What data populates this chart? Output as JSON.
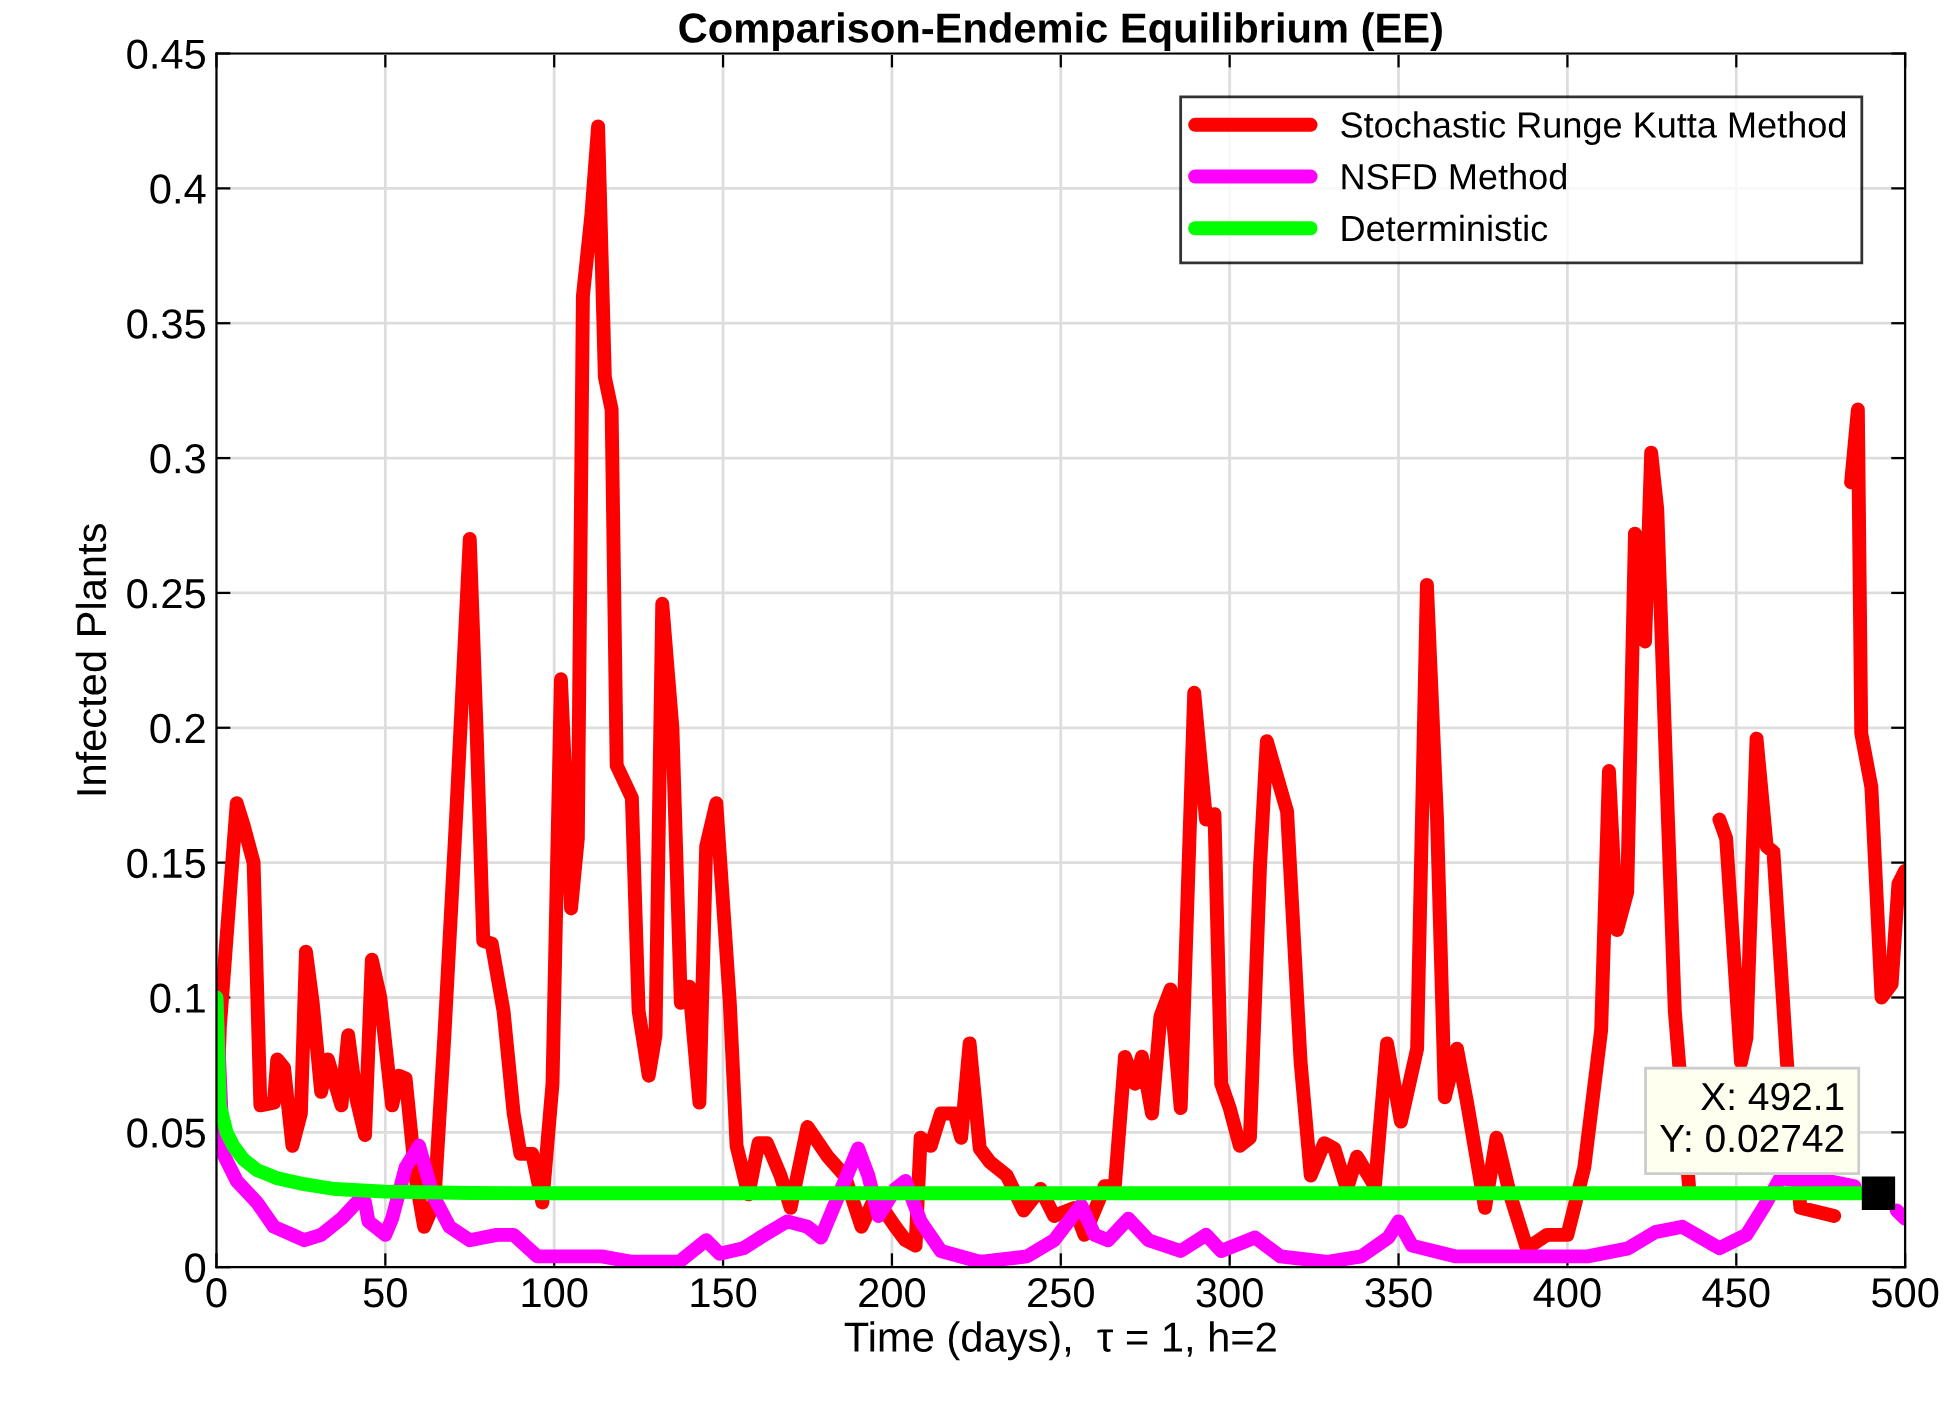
{
  "chart_data": {
    "type": "line",
    "title": "Comparison-Endemic Equilibrium (EE)",
    "xlabel": "Time (days),  τ = 1, h=2",
    "ylabel": "Infected Plants",
    "xlim": [
      0,
      500
    ],
    "xticks": [
      0,
      50,
      100,
      150,
      200,
      250,
      300,
      350,
      400,
      450,
      500
    ],
    "ylim": [
      0,
      0.45
    ],
    "yticks": [
      0,
      0.05,
      0.1,
      0.15,
      0.2,
      0.25,
      0.3,
      0.35,
      0.4,
      0.45
    ],
    "grid": true,
    "legend": "top right",
    "line_style": "solid",
    "marker": "none",
    "annotations": [
      {
        "text": "X: 492.1\nY: 0.02742",
        "x": 492.1,
        "y": 0.02742
      }
    ],
    "series": [
      {
        "name": "Stochastic Runge Kutta Method",
        "color": "#ff0000",
        "x": [
          0,
          1,
          6,
          8,
          11,
          13,
          17,
          18,
          20,
          22.5,
          25,
          26.5,
          28.5,
          31,
          33,
          37,
          39,
          41.5,
          44,
          46,
          48.5,
          52,
          54,
          56,
          59,
          61.5,
          64.5,
          67.5,
          71,
          75,
          77,
          79,
          81.5,
          85,
          88,
          90,
          93.5,
          96.5,
          99.5,
          102,
          105,
          107,
          108.5,
          111,
          113,
          115,
          117,
          118.5,
          123,
          125,
          128,
          130,
          132,
          135,
          137.5,
          140,
          143,
          145,
          148,
          152,
          154,
          157.5,
          160.5,
          163,
          167,
          170,
          175,
          181,
          186,
          191,
          195,
          201,
          204,
          207,
          208.5,
          211.5,
          214.5,
          218.5,
          220.5,
          223,
          226,
          229,
          234,
          239,
          244,
          248,
          254,
          257,
          263,
          266,
          269,
          272,
          274,
          277,
          279.5,
          282.5,
          285.5,
          289.5,
          293,
          295.5,
          297.5,
          300,
          303,
          306,
          309,
          311,
          317,
          321,
          324,
          328,
          331,
          334.7,
          337.7,
          343,
          346.6,
          350.7,
          355.5,
          358.4,
          361.4,
          363.7,
          367.3,
          370.3,
          375.6,
          379,
          383,
          388,
          394,
          400,
          405,
          410,
          412.3,
          414.7,
          417.7,
          420,
          423,
          424.8,
          426.6,
          429,
          431.8,
          436,
          441,
          445,
          447,
          451.4,
          453,
          456,
          459,
          461,
          465,
          469,
          479,
          481,
          484,
          486,
          487,
          490,
          493,
          496,
          498,
          500
        ],
        "values": [
          0.05,
          0.089,
          0.172,
          0.164,
          0.15,
          0.06,
          0.061,
          0.077,
          0.074,
          0.045,
          0.057,
          0.117,
          0.098,
          0.065,
          0.077,
          0.06,
          0.086,
          0.062,
          0.049,
          0.114,
          0.1,
          0.06,
          0.071,
          0.07,
          0.033,
          0.015,
          0.024,
          0.086,
          0.168,
          0.27,
          0.2,
          0.121,
          0.12,
          0.095,
          0.057,
          0.042,
          0.042,
          0.024,
          0.068,
          0.218,
          0.133,
          0.159,
          0.36,
          0.39,
          0.423,
          0.33,
          0.318,
          0.186,
          0.174,
          0.095,
          0.071,
          0.086,
          0.246,
          0.2,
          0.098,
          0.104,
          0.061,
          0.156,
          0.172,
          0.098,
          0.045,
          0.027,
          0.046,
          0.046,
          0.034,
          0.022,
          0.052,
          0.041,
          0.034,
          0.015,
          0.026,
          0.015,
          0.01,
          0.008,
          0.048,
          0.045,
          0.057,
          0.057,
          0.048,
          0.083,
          0.044,
          0.039,
          0.034,
          0.021,
          0.029,
          0.019,
          0.022,
          0.012,
          0.03,
          0.03,
          0.078,
          0.068,
          0.078,
          0.057,
          0.093,
          0.103,
          0.059,
          0.213,
          0.166,
          0.168,
          0.068,
          0.059,
          0.045,
          0.048,
          0.149,
          0.195,
          0.169,
          0.076,
          0.034,
          0.046,
          0.044,
          0.029,
          0.041,
          0.03,
          0.083,
          0.054,
          0.081,
          0.253,
          0.166,
          0.063,
          0.081,
          0.061,
          0.022,
          0.048,
          0.027,
          0.007,
          0.012,
          0.012,
          0.037,
          0.088,
          0.184,
          0.125,
          0.139,
          0.272,
          0.232,
          0.302,
          0.281,
          0.193,
          0.095,
          0.03,
          null,
          0.166,
          0.159,
          0.076,
          0.085,
          0.196,
          0.156,
          0.154,
          0.076,
          0.022,
          0.019,
          null,
          0.291,
          0.318,
          0.198,
          0.178,
          0.1,
          0.105,
          0.142,
          0.147
        ]
      },
      {
        "name": "NSFD Method",
        "color": "#ff00ff",
        "x": [
          0,
          2,
          6,
          12,
          17,
          22.5,
          26,
          31,
          37,
          41.5,
          44,
          45,
          50,
          52,
          56,
          60,
          64,
          69,
          75,
          83,
          88,
          95,
          102,
          114,
          123,
          137,
          145,
          149,
          156,
          161,
          169,
          175,
          179,
          185,
          190,
          193,
          196,
          201,
          204,
          208.5,
          214.5,
          226,
          240,
          248,
          256,
          260,
          264,
          270,
          276,
          285.5,
          293,
          297.5,
          307.5,
          315,
          329,
          339,
          347,
          350,
          354,
          367,
          386,
          406,
          418,
          426,
          434,
          445,
          453,
          458,
          463,
          469,
          477,
          485,
          492,
          497.5,
          500
        ],
        "values": [
          0.1,
          0.042,
          0.032,
          0.024,
          0.015,
          0.012,
          0.01,
          0.012,
          0.018,
          0.024,
          0.024,
          0.017,
          0.012,
          0.018,
          0.037,
          0.045,
          0.027,
          0.015,
          0.01,
          0.012,
          0.012,
          0.004,
          0.004,
          0.004,
          0.002,
          0.002,
          0.01,
          0.005,
          0.007,
          0.011,
          0.017,
          0.015,
          0.011,
          0.029,
          0.044,
          0.034,
          0.019,
          0.029,
          0.032,
          0.017,
          0.006,
          0.002,
          0.004,
          0.01,
          0.023,
          0.012,
          0.01,
          0.018,
          0.01,
          0.006,
          0.012,
          0.006,
          0.011,
          0.004,
          0.002,
          0.004,
          0.011,
          0.017,
          0.008,
          0.004,
          0.004,
          0.004,
          0.007,
          0.013,
          0.015,
          0.007,
          0.012,
          0.022,
          0.033,
          0.032,
          0.032,
          0.03,
          null,
          0.021,
          0.018
        ]
      },
      {
        "name": "Deterministic",
        "color": "#00ff00",
        "x": [
          0,
          1,
          3,
          5,
          8,
          12,
          18,
          25,
          35,
          50,
          75,
          100,
          200,
          300,
          400,
          492.1
        ],
        "values": [
          0.1,
          0.06,
          0.05,
          0.045,
          0.04,
          0.036,
          0.033,
          0.031,
          0.029,
          0.028,
          0.0275,
          0.0274,
          0.0274,
          0.0274,
          0.0274,
          0.0274
        ]
      }
    ]
  }
}
